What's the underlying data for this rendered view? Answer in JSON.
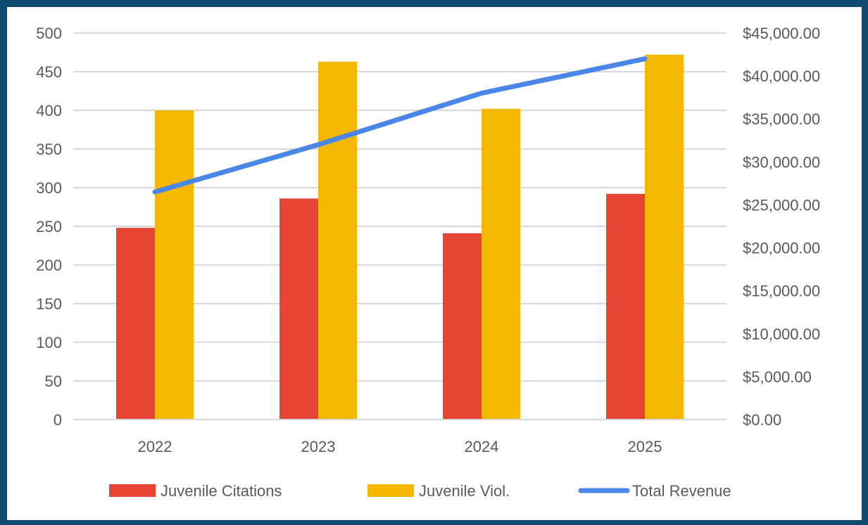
{
  "chart_data": {
    "type": "bar",
    "categories": [
      "2022",
      "2023",
      "2024",
      "2025"
    ],
    "series": [
      {
        "name": "Juvenile Citations",
        "kind": "bar",
        "axis": "left",
        "color": "#e64434",
        "values": [
          248,
          286,
          241,
          292
        ]
      },
      {
        "name": "Juvenile Viol.",
        "kind": "bar",
        "axis": "left",
        "color": "#f5b800",
        "values": [
          400,
          463,
          402,
          472
        ]
      },
      {
        "name": "Total Revenue",
        "kind": "line",
        "axis": "right",
        "color": "#4a86e8",
        "values": [
          26500,
          32000,
          38000,
          42000
        ]
      }
    ],
    "y_left": {
      "ylim": [
        0,
        500
      ],
      "ticks": [
        0,
        50,
        100,
        150,
        200,
        250,
        300,
        350,
        400,
        450,
        500
      ],
      "tick_labels": [
        "0",
        "50",
        "100",
        "150",
        "200",
        "250",
        "300",
        "350",
        "400",
        "450",
        "500"
      ]
    },
    "y_right": {
      "ylim": [
        0,
        45000
      ],
      "ticks": [
        0,
        5000,
        10000,
        15000,
        20000,
        25000,
        30000,
        35000,
        40000,
        45000
      ],
      "tick_labels": [
        "$0.00",
        "$5,000.00",
        "$10,000.00",
        "$15,000.00",
        "$20,000.00",
        "$25,000.00",
        "$30,000.00",
        "$35,000.00",
        "$40,000.00",
        "$45,000.00"
      ]
    },
    "grid": true,
    "legend_position": "bottom",
    "gridline_color": "#d9d9d9",
    "text_color": "#595959",
    "background_color": "#ffffff",
    "frame_color": "#0f4a6e"
  }
}
